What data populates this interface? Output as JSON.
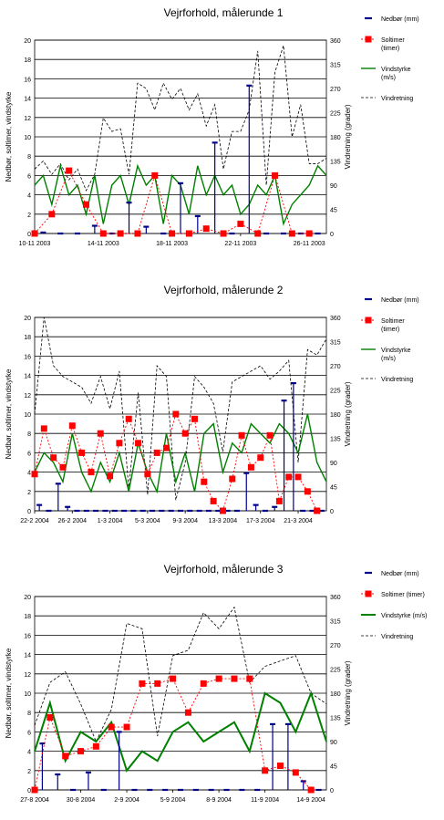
{
  "colors": {
    "precip": "#00008b",
    "sun": "#ff0000",
    "wind": "#008000",
    "direction": "#000000",
    "grid": "#000000"
  },
  "chart_data": [
    {
      "type": "line",
      "title": "Vejrforhold, målerunde 1",
      "ylabel": "Nedbør, soltimer, vindstyrke",
      "y2label": "Vindretning (grader)",
      "ylim": [
        0,
        20
      ],
      "y2lim": [
        0,
        360
      ],
      "yticks": [
        "0",
        "2",
        "4",
        "6",
        "8",
        "10",
        "12",
        "14",
        "16",
        "18",
        "20"
      ],
      "y2ticks": [
        "0",
        "45",
        "90",
        "135",
        "180",
        "225",
        "270",
        "315",
        "360"
      ],
      "xlim": [
        0,
        17
      ],
      "xticks": [
        {
          "pos": 0,
          "label": "10-11 2003"
        },
        {
          "pos": 4,
          "label": "14-11 2003"
        },
        {
          "pos": 8,
          "label": "18-11 2003"
        },
        {
          "pos": 12,
          "label": "22-11 2003"
        },
        {
          "pos": 16,
          "label": "26-11 2003"
        }
      ],
      "legend": {
        "placement": "right",
        "entries": [
          "Nedbør (mm)",
          "Soltimer (timer)",
          "Vindstyrke (m/s)",
          "Vindretning"
        ]
      },
      "series": [
        {
          "name": "Nedbør (mm)",
          "kind": "bar",
          "x": [
            0,
            1,
            2,
            3,
            4,
            5,
            6,
            7,
            8,
            9,
            10,
            11,
            12,
            13,
            14,
            15,
            16
          ],
          "values": [
            0.1,
            0,
            0,
            0.8,
            0,
            3.2,
            0.7,
            0,
            5.2,
            1.8,
            9.4,
            0,
            15.3,
            0,
            0,
            0,
            0
          ]
        },
        {
          "name": "Soltimer (timer)",
          "kind": "marker",
          "x": [
            0,
            1,
            2,
            3,
            4,
            5,
            6,
            7,
            8,
            9,
            10,
            11,
            12,
            13,
            14,
            15,
            16
          ],
          "values": [
            0,
            2,
            6.5,
            3,
            0,
            0,
            0,
            6,
            0,
            0,
            0.5,
            0,
            1,
            0,
            6,
            0,
            0
          ]
        },
        {
          "name": "Vindstyrke (m/s)",
          "kind": "line",
          "x": [
            0,
            0.5,
            1,
            1.5,
            2,
            2.5,
            3,
            3.5,
            4,
            4.5,
            5,
            5.5,
            6,
            6.5,
            7,
            7.5,
            8,
            8.5,
            9,
            9.5,
            10,
            10.5,
            11,
            11.5,
            12,
            12.5,
            13,
            13.5,
            14,
            14.5,
            15,
            15.5,
            16,
            16.5,
            17
          ],
          "values": [
            5,
            6,
            3,
            7,
            4,
            5,
            2,
            6,
            1,
            5,
            6,
            3,
            7,
            5,
            6,
            1,
            6,
            5,
            2,
            7,
            4,
            6,
            4,
            5,
            2,
            3,
            5,
            4,
            6,
            1,
            3,
            4,
            5,
            7,
            6
          ]
        },
        {
          "name": "Vindretning",
          "kind": "dashed",
          "axis": "right",
          "x": [
            0,
            0.5,
            1,
            1.5,
            2,
            2.5,
            3,
            3.5,
            4,
            4.5,
            5,
            5.5,
            6,
            6.5,
            7,
            7.5,
            8,
            8.5,
            9,
            9.5,
            10,
            10.5,
            11,
            11.5,
            12,
            12.5,
            13,
            13.5,
            14,
            14.5,
            15,
            15.5,
            16,
            16.5,
            17
          ],
          "values": [
            120,
            135,
            110,
            130,
            100,
            120,
            80,
            110,
            215,
            190,
            195,
            110,
            280,
            270,
            230,
            280,
            250,
            270,
            230,
            260,
            200,
            240,
            120,
            190,
            190,
            230,
            340,
            90,
            300,
            350,
            180,
            240,
            130,
            130,
            140
          ]
        }
      ]
    },
    {
      "type": "line",
      "title": "Vejrforhold, målerunde 2",
      "ylabel": "Nedbør, soltimer, vindstyrke",
      "y2label": "Vindretning (grader)",
      "ylim": [
        0,
        20
      ],
      "y2lim": [
        0,
        360
      ],
      "yticks": [
        "0",
        "2",
        "4",
        "6",
        "8",
        "10",
        "12",
        "14",
        "16",
        "18",
        "20"
      ],
      "y2ticks": [
        "0",
        "45",
        "90",
        "135",
        "180",
        "225",
        "270",
        "315",
        "360"
      ],
      "xlim": [
        0,
        31
      ],
      "xticks": [
        {
          "pos": 0,
          "label": "22-2 2004"
        },
        {
          "pos": 4,
          "label": "26-2 2004"
        },
        {
          "pos": 8,
          "label": "1-3 2004"
        },
        {
          "pos": 12,
          "label": "5-3 2004"
        },
        {
          "pos": 16,
          "label": "9-3 2004"
        },
        {
          "pos": 20,
          "label": "13-3 2004"
        },
        {
          "pos": 24,
          "label": "17-3 2004"
        },
        {
          "pos": 28,
          "label": "21-3 2004"
        }
      ],
      "legend": {
        "placement": "right",
        "entries": [
          "Nedbør (mm)",
          "Soltimer (timer)",
          "Vindstyrke (m/s)",
          "Vindretning"
        ]
      },
      "series": [
        {
          "name": "Nedbør (mm)",
          "kind": "bar",
          "x": [
            0,
            1,
            2,
            3,
            4,
            5,
            6,
            7,
            8,
            9,
            10,
            11,
            12,
            13,
            14,
            15,
            16,
            17,
            18,
            19,
            20,
            21,
            22,
            23,
            24,
            25,
            26,
            27,
            28,
            29,
            30
          ],
          "values": [
            0.6,
            0,
            2.8,
            0.4,
            0,
            0,
            0,
            0,
            0,
            0,
            0,
            0,
            0,
            0,
            0,
            0,
            0,
            0,
            0,
            0,
            0,
            0,
            3.9,
            0.6,
            0,
            0.4,
            11.4,
            13.2,
            0,
            0,
            0
          ]
        },
        {
          "name": "Soltimer (timer)",
          "kind": "marker",
          "x": [
            0,
            1,
            2,
            3,
            4,
            5,
            6,
            7,
            8,
            9,
            10,
            11,
            12,
            13,
            14,
            15,
            16,
            17,
            18,
            19,
            20,
            21,
            22,
            23,
            24,
            25,
            26,
            27,
            28,
            29,
            30
          ],
          "values": [
            3.8,
            8.5,
            5.5,
            4.5,
            8.8,
            6,
            4,
            8,
            3.6,
            7,
            9.5,
            7,
            3.8,
            6,
            6.5,
            10,
            8,
            9.5,
            3,
            1,
            0,
            3.3,
            7.8,
            4.5,
            5.5,
            7.8,
            1,
            3.5,
            3.5,
            2,
            0
          ]
        },
        {
          "name": "Vindstyrke (m/s)",
          "kind": "line",
          "x": [
            0,
            1,
            2,
            3,
            4,
            5,
            6,
            7,
            8,
            9,
            10,
            11,
            12,
            13,
            14,
            15,
            16,
            17,
            18,
            19,
            20,
            21,
            22,
            23,
            24,
            25,
            26,
            27,
            28,
            29,
            30,
            31
          ],
          "values": [
            4,
            6,
            5,
            3,
            8,
            4,
            2,
            5,
            3,
            6,
            2,
            7,
            4,
            2,
            8,
            3,
            6,
            2,
            8,
            9,
            4,
            7,
            6,
            9,
            8,
            7,
            9,
            8,
            6,
            10,
            5,
            3
          ]
        },
        {
          "name": "Vindretning",
          "kind": "dashed",
          "axis": "right",
          "x": [
            0,
            1,
            2,
            3,
            4,
            5,
            6,
            7,
            8,
            9,
            10,
            11,
            12,
            13,
            14,
            15,
            16,
            17,
            18,
            19,
            20,
            21,
            22,
            23,
            24,
            25,
            26,
            27,
            28,
            29,
            30,
            31
          ],
          "values": [
            180,
            360,
            270,
            250,
            240,
            230,
            200,
            250,
            190,
            260,
            40,
            220,
            30,
            270,
            250,
            20,
            90,
            250,
            230,
            200,
            110,
            240,
            250,
            260,
            270,
            245,
            260,
            280,
            90,
            300,
            290,
            320
          ]
        }
      ]
    },
    {
      "type": "line",
      "title": "Vejrforhold, målerunde 3",
      "ylabel": "Nedbør, soltimer, vindstyrke",
      "y2label": "Vindretning (grader)",
      "ylim": [
        0,
        20
      ],
      "y2lim": [
        0,
        360
      ],
      "yticks": [
        "0",
        "2",
        "4",
        "6",
        "8",
        "10",
        "12",
        "14",
        "16",
        "18",
        "20"
      ],
      "y2ticks": [
        "0",
        "45",
        "90",
        "135",
        "180",
        "225",
        "270",
        "315",
        "360"
      ],
      "xlim": [
        0,
        19
      ],
      "xticks": [
        {
          "pos": 0,
          "label": "27-8 2004"
        },
        {
          "pos": 3,
          "label": "30-8 2004"
        },
        {
          "pos": 6,
          "label": "2-9 2004"
        },
        {
          "pos": 9,
          "label": "5-9 2004"
        },
        {
          "pos": 12,
          "label": "8-9 2004"
        },
        {
          "pos": 15,
          "label": "11-9 2004"
        },
        {
          "pos": 18,
          "label": "14-9 2004"
        }
      ],
      "legend": {
        "placement": "right",
        "entries": [
          "Nedbør (mm)",
          "Soltimer (timer)",
          "Vindstyrke (m/s)",
          "Vindretning"
        ]
      },
      "series": [
        {
          "name": "Nedbør (mm)",
          "kind": "bar",
          "x": [
            0,
            1,
            2,
            3,
            4,
            5,
            6,
            7,
            8,
            9,
            10,
            11,
            12,
            13,
            14,
            15,
            16,
            17,
            18
          ],
          "values": [
            4.8,
            1.6,
            0,
            1.8,
            0,
            6,
            0,
            0,
            0,
            0,
            0,
            0,
            0,
            0,
            0,
            6.8,
            6.8,
            0.9,
            0
          ]
        },
        {
          "name": "Soltimer (timer)",
          "kind": "marker",
          "x": [
            0,
            1,
            2,
            3,
            4,
            5,
            6,
            7,
            8,
            9,
            10,
            11,
            12,
            13,
            14,
            15,
            16,
            17,
            18
          ],
          "values": [
            0,
            7.5,
            3.5,
            4,
            4.5,
            6.5,
            6.5,
            11,
            11,
            11.5,
            8,
            11,
            11.5,
            11.5,
            11.5,
            2,
            2.5,
            1.8,
            0
          ]
        },
        {
          "name": "Vindstyrke (m/s)",
          "kind": "line",
          "x": [
            0,
            1,
            2,
            3,
            4,
            5,
            6,
            7,
            8,
            9,
            10,
            11,
            12,
            13,
            14,
            15,
            16,
            17,
            18,
            19
          ],
          "values": [
            4,
            9,
            3,
            6,
            5,
            7,
            2,
            4,
            3,
            6,
            7,
            5,
            6,
            7,
            4,
            10,
            9,
            6,
            10,
            5
          ]
        },
        {
          "name": "Vindretning",
          "kind": "dashed",
          "axis": "right",
          "x": [
            0,
            1,
            2,
            3,
            4,
            5,
            6,
            7,
            8,
            9,
            10,
            11,
            12,
            13,
            14,
            15,
            16,
            17,
            18,
            19
          ],
          "values": [
            120,
            200,
            220,
            160,
            90,
            150,
            310,
            300,
            100,
            250,
            260,
            330,
            300,
            340,
            200,
            230,
            240,
            250,
            180,
            160
          ]
        }
      ]
    }
  ]
}
